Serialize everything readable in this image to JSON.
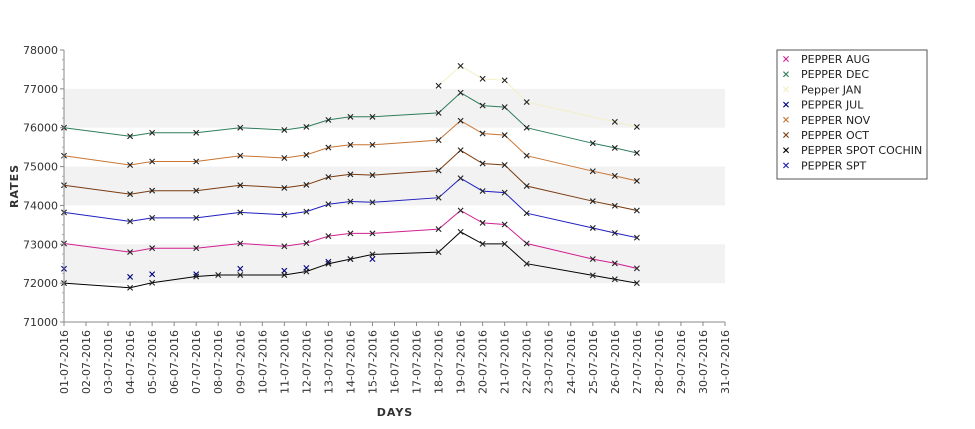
{
  "chart_data": {
    "type": "line",
    "xlabel": "DAYS",
    "ylabel": "RATES",
    "ylim": [
      71000,
      78000
    ],
    "yticks": [
      71000,
      72000,
      73000,
      74000,
      75000,
      76000,
      77000,
      78000
    ],
    "x_range": [
      "01-07-2016",
      "31-07-2016"
    ],
    "x_tick_labels": [
      "01-07-2016",
      "02-07-2016",
      "03-07-2016",
      "04-07-2016",
      "05-07-2016",
      "06-07-2016",
      "07-07-2016",
      "08-07-2016",
      "09-07-2016",
      "10-07-2016",
      "11-07-2016",
      "12-07-2016",
      "13-07-2016",
      "14-07-2016",
      "15-07-2016",
      "16-07-2016",
      "17-07-2016",
      "18-07-2016",
      "19-07-2016",
      "20-07-2016",
      "21-07-2016",
      "22-07-2016",
      "23-07-2016",
      "24-07-2016",
      "25-07-2016",
      "26-07-2016",
      "27-07-2016",
      "28-07-2016",
      "29-07-2016",
      "30-07-2016",
      "31-07-2016"
    ],
    "grid": "alternating horizontal bands",
    "legend_position": "right",
    "series": [
      {
        "name": "PEPPER AUG",
        "color": "#d02090",
        "line": true,
        "x": [
          "01-07-2016",
          "04-07-2016",
          "05-07-2016",
          "07-07-2016",
          "09-07-2016",
          "11-07-2016",
          "12-07-2016",
          "13-07-2016",
          "14-07-2016",
          "15-07-2016",
          "18-07-2016",
          "19-07-2016",
          "20-07-2016",
          "21-07-2016",
          "22-07-2016",
          "25-07-2016",
          "26-07-2016",
          "27-07-2016"
        ],
        "y": [
          73020,
          72800,
          72900,
          72900,
          73020,
          72950,
          73030,
          73210,
          73280,
          73280,
          73390,
          73870,
          73550,
          73510,
          73020,
          72620,
          72510,
          72380
        ]
      },
      {
        "name": "PEPPER DEC",
        "color": "#2e7d5b",
        "line": true,
        "x": [
          "01-07-2016",
          "04-07-2016",
          "05-07-2016",
          "07-07-2016",
          "09-07-2016",
          "11-07-2016",
          "12-07-2016",
          "13-07-2016",
          "14-07-2016",
          "15-07-2016",
          "18-07-2016",
          "19-07-2016",
          "20-07-2016",
          "21-07-2016",
          "22-07-2016",
          "25-07-2016",
          "26-07-2016",
          "27-07-2016"
        ],
        "y": [
          76000,
          75780,
          75870,
          75870,
          76000,
          75940,
          76020,
          76200,
          76280,
          76280,
          76380,
          76900,
          76570,
          76530,
          76000,
          75600,
          75480,
          75350
        ]
      },
      {
        "name": "Pepper JAN",
        "color": "#f3efc4",
        "line": true,
        "x": [
          "18-07-2016",
          "19-07-2016",
          "20-07-2016",
          "21-07-2016",
          "22-07-2016",
          "26-07-2016",
          "27-07-2016"
        ],
        "y": [
          77080,
          77590,
          77260,
          77220,
          76660,
          76150,
          76020
        ]
      },
      {
        "name": "PEPPER JUL",
        "color": "#000080",
        "line": false,
        "x": [
          "01-07-2016",
          "04-07-2016",
          "05-07-2016",
          "07-07-2016",
          "09-07-2016",
          "11-07-2016",
          "12-07-2016",
          "13-07-2016",
          "14-07-2016",
          "15-07-2016"
        ],
        "y": [
          72370,
          72160,
          72230,
          72230,
          72370,
          72320,
          72390,
          72550,
          72620,
          72620
        ]
      },
      {
        "name": "PEPPER NOV",
        "color": "#c87533",
        "line": true,
        "x": [
          "01-07-2016",
          "04-07-2016",
          "05-07-2016",
          "07-07-2016",
          "09-07-2016",
          "11-07-2016",
          "12-07-2016",
          "13-07-2016",
          "14-07-2016",
          "15-07-2016",
          "18-07-2016",
          "19-07-2016",
          "20-07-2016",
          "21-07-2016",
          "22-07-2016",
          "25-07-2016",
          "26-07-2016",
          "27-07-2016"
        ],
        "y": [
          75280,
          75040,
          75130,
          75130,
          75280,
          75220,
          75300,
          75490,
          75560,
          75560,
          75680,
          76180,
          75850,
          75810,
          75280,
          74880,
          74760,
          74630
        ]
      },
      {
        "name": "PEPPER OCT",
        "color": "#7a3b10",
        "line": true,
        "x": [
          "01-07-2016",
          "04-07-2016",
          "05-07-2016",
          "07-07-2016",
          "09-07-2016",
          "11-07-2016",
          "12-07-2016",
          "13-07-2016",
          "14-07-2016",
          "15-07-2016",
          "18-07-2016",
          "19-07-2016",
          "20-07-2016",
          "21-07-2016",
          "22-07-2016",
          "25-07-2016",
          "26-07-2016",
          "27-07-2016"
        ],
        "y": [
          74520,
          74290,
          74380,
          74380,
          74520,
          74450,
          74530,
          74730,
          74800,
          74780,
          74900,
          75420,
          75080,
          75040,
          74500,
          74110,
          73990,
          73870
        ]
      },
      {
        "name": "PEPPER SPOT COCHIN",
        "color": "#000000",
        "line": true,
        "x": [
          "01-07-2016",
          "04-07-2016",
          "05-07-2016",
          "07-07-2016",
          "08-07-2016",
          "09-07-2016",
          "11-07-2016",
          "12-07-2016",
          "13-07-2016",
          "14-07-2016",
          "15-07-2016",
          "18-07-2016",
          "19-07-2016",
          "20-07-2016",
          "21-07-2016",
          "22-07-2016",
          "25-07-2016",
          "26-07-2016",
          "27-07-2016"
        ],
        "y": [
          72000,
          71880,
          72010,
          72170,
          72210,
          72210,
          72210,
          72300,
          72500,
          72620,
          72740,
          72800,
          73320,
          73010,
          73010,
          72500,
          72200,
          72100,
          72000
        ]
      },
      {
        "name": "PEPPER SPT",
        "color": "#1f1fbf",
        "line": true,
        "x": [
          "01-07-2016",
          "04-07-2016",
          "05-07-2016",
          "07-07-2016",
          "09-07-2016",
          "11-07-2016",
          "12-07-2016",
          "13-07-2016",
          "14-07-2016",
          "15-07-2016",
          "18-07-2016",
          "19-07-2016",
          "20-07-2016",
          "21-07-2016",
          "22-07-2016",
          "25-07-2016",
          "26-07-2016",
          "27-07-2016"
        ],
        "y": [
          73820,
          73590,
          73680,
          73680,
          73820,
          73760,
          73840,
          74030,
          74100,
          74080,
          74200,
          74700,
          74370,
          74330,
          73800,
          73420,
          73290,
          73170
        ]
      }
    ]
  }
}
